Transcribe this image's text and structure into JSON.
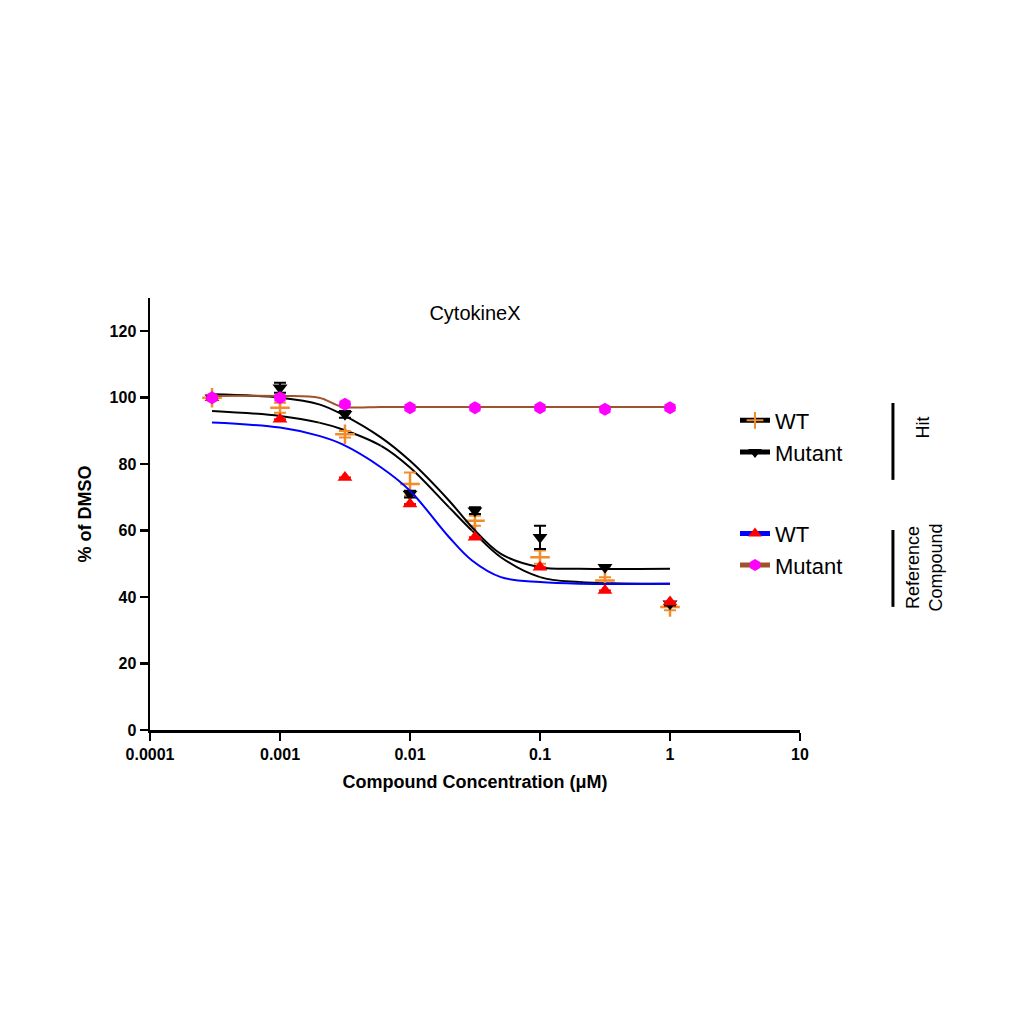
{
  "chart_data": {
    "type": "scatter",
    "title": "CytokineX",
    "x_label": "Compound Concentration (μM)",
    "y_label": "% of DMSO",
    "log": "x",
    "grid": false,
    "legend": "right",
    "xlim": [
      0.0001,
      10
    ],
    "xticks": [
      0.0001,
      0.001,
      0.01,
      0.1,
      1,
      10
    ],
    "ylim": [
      0,
      130
    ],
    "yticks": [
      0,
      20,
      40,
      60,
      80,
      100,
      120
    ],
    "x": [
      0.0003,
      0.001,
      0.00316,
      0.01,
      0.0316,
      0.1,
      0.316,
      1
    ],
    "fit_x": [
      0.0003,
      0.001,
      0.002,
      0.003,
      0.006,
      0.01,
      0.02,
      0.03,
      0.05,
      0.1,
      0.2,
      1
    ],
    "series": [
      {
        "name": "WT",
        "group": "Hit",
        "color": "#f28c28",
        "marker": "cross",
        "values": [
          100,
          97,
          89,
          74,
          63,
          52,
          45,
          37
        ],
        "errors": [
          0.5,
          1.5,
          1,
          3.5,
          1.5,
          2,
          1,
          1
        ],
        "fit": {
          "color": "#000000",
          "values": [
            96,
            94.5,
            92.5,
            90.5,
            85.5,
            79,
            67,
            60,
            52,
            46,
            44.5,
            44
          ]
        }
      },
      {
        "name": "Mutant",
        "group": "Hit",
        "color": "#000000",
        "marker": "triangle-down",
        "values": [
          100,
          103,
          95,
          71,
          66,
          58,
          49,
          38
        ],
        "errors": [
          0.5,
          1.5,
          1,
          1,
          1,
          3.5,
          0.5,
          0.5
        ],
        "fit": {
          "color": "#000000",
          "values": [
            101,
            100,
            98,
            95,
            88,
            81,
            69,
            61,
            53,
            49,
            48.5,
            48.5
          ]
        }
      },
      {
        "name": "WT",
        "group": "Reference Compound",
        "color": "#ff0000",
        "marker": "triangle-up",
        "values": [
          100,
          93.5,
          76,
          68,
          58,
          49,
          42,
          38.5
        ],
        "errors": [
          0,
          0,
          0,
          0,
          0,
          0,
          0,
          0
        ],
        "fit": {
          "color": "#0000ff",
          "values": [
            92.5,
            91,
            88.5,
            86,
            79,
            72,
            58,
            51,
            46,
            44.5,
            44,
            44
          ]
        }
      },
      {
        "name": "Mutant",
        "group": "Reference Compound",
        "color": "#ff00ff",
        "marker": "hexagon",
        "values": [
          100,
          100,
          98,
          97,
          97,
          97,
          96.5,
          97
        ],
        "errors": [
          0,
          0,
          0,
          0,
          0,
          0,
          0,
          0
        ],
        "fit": {
          "color": "#a0522d",
          "values": [
            100.5,
            100.5,
            100,
            97.3,
            97.2,
            97.2,
            97.2,
            97.2,
            97.2,
            97.2,
            97.2,
            97.2
          ]
        }
      }
    ]
  }
}
